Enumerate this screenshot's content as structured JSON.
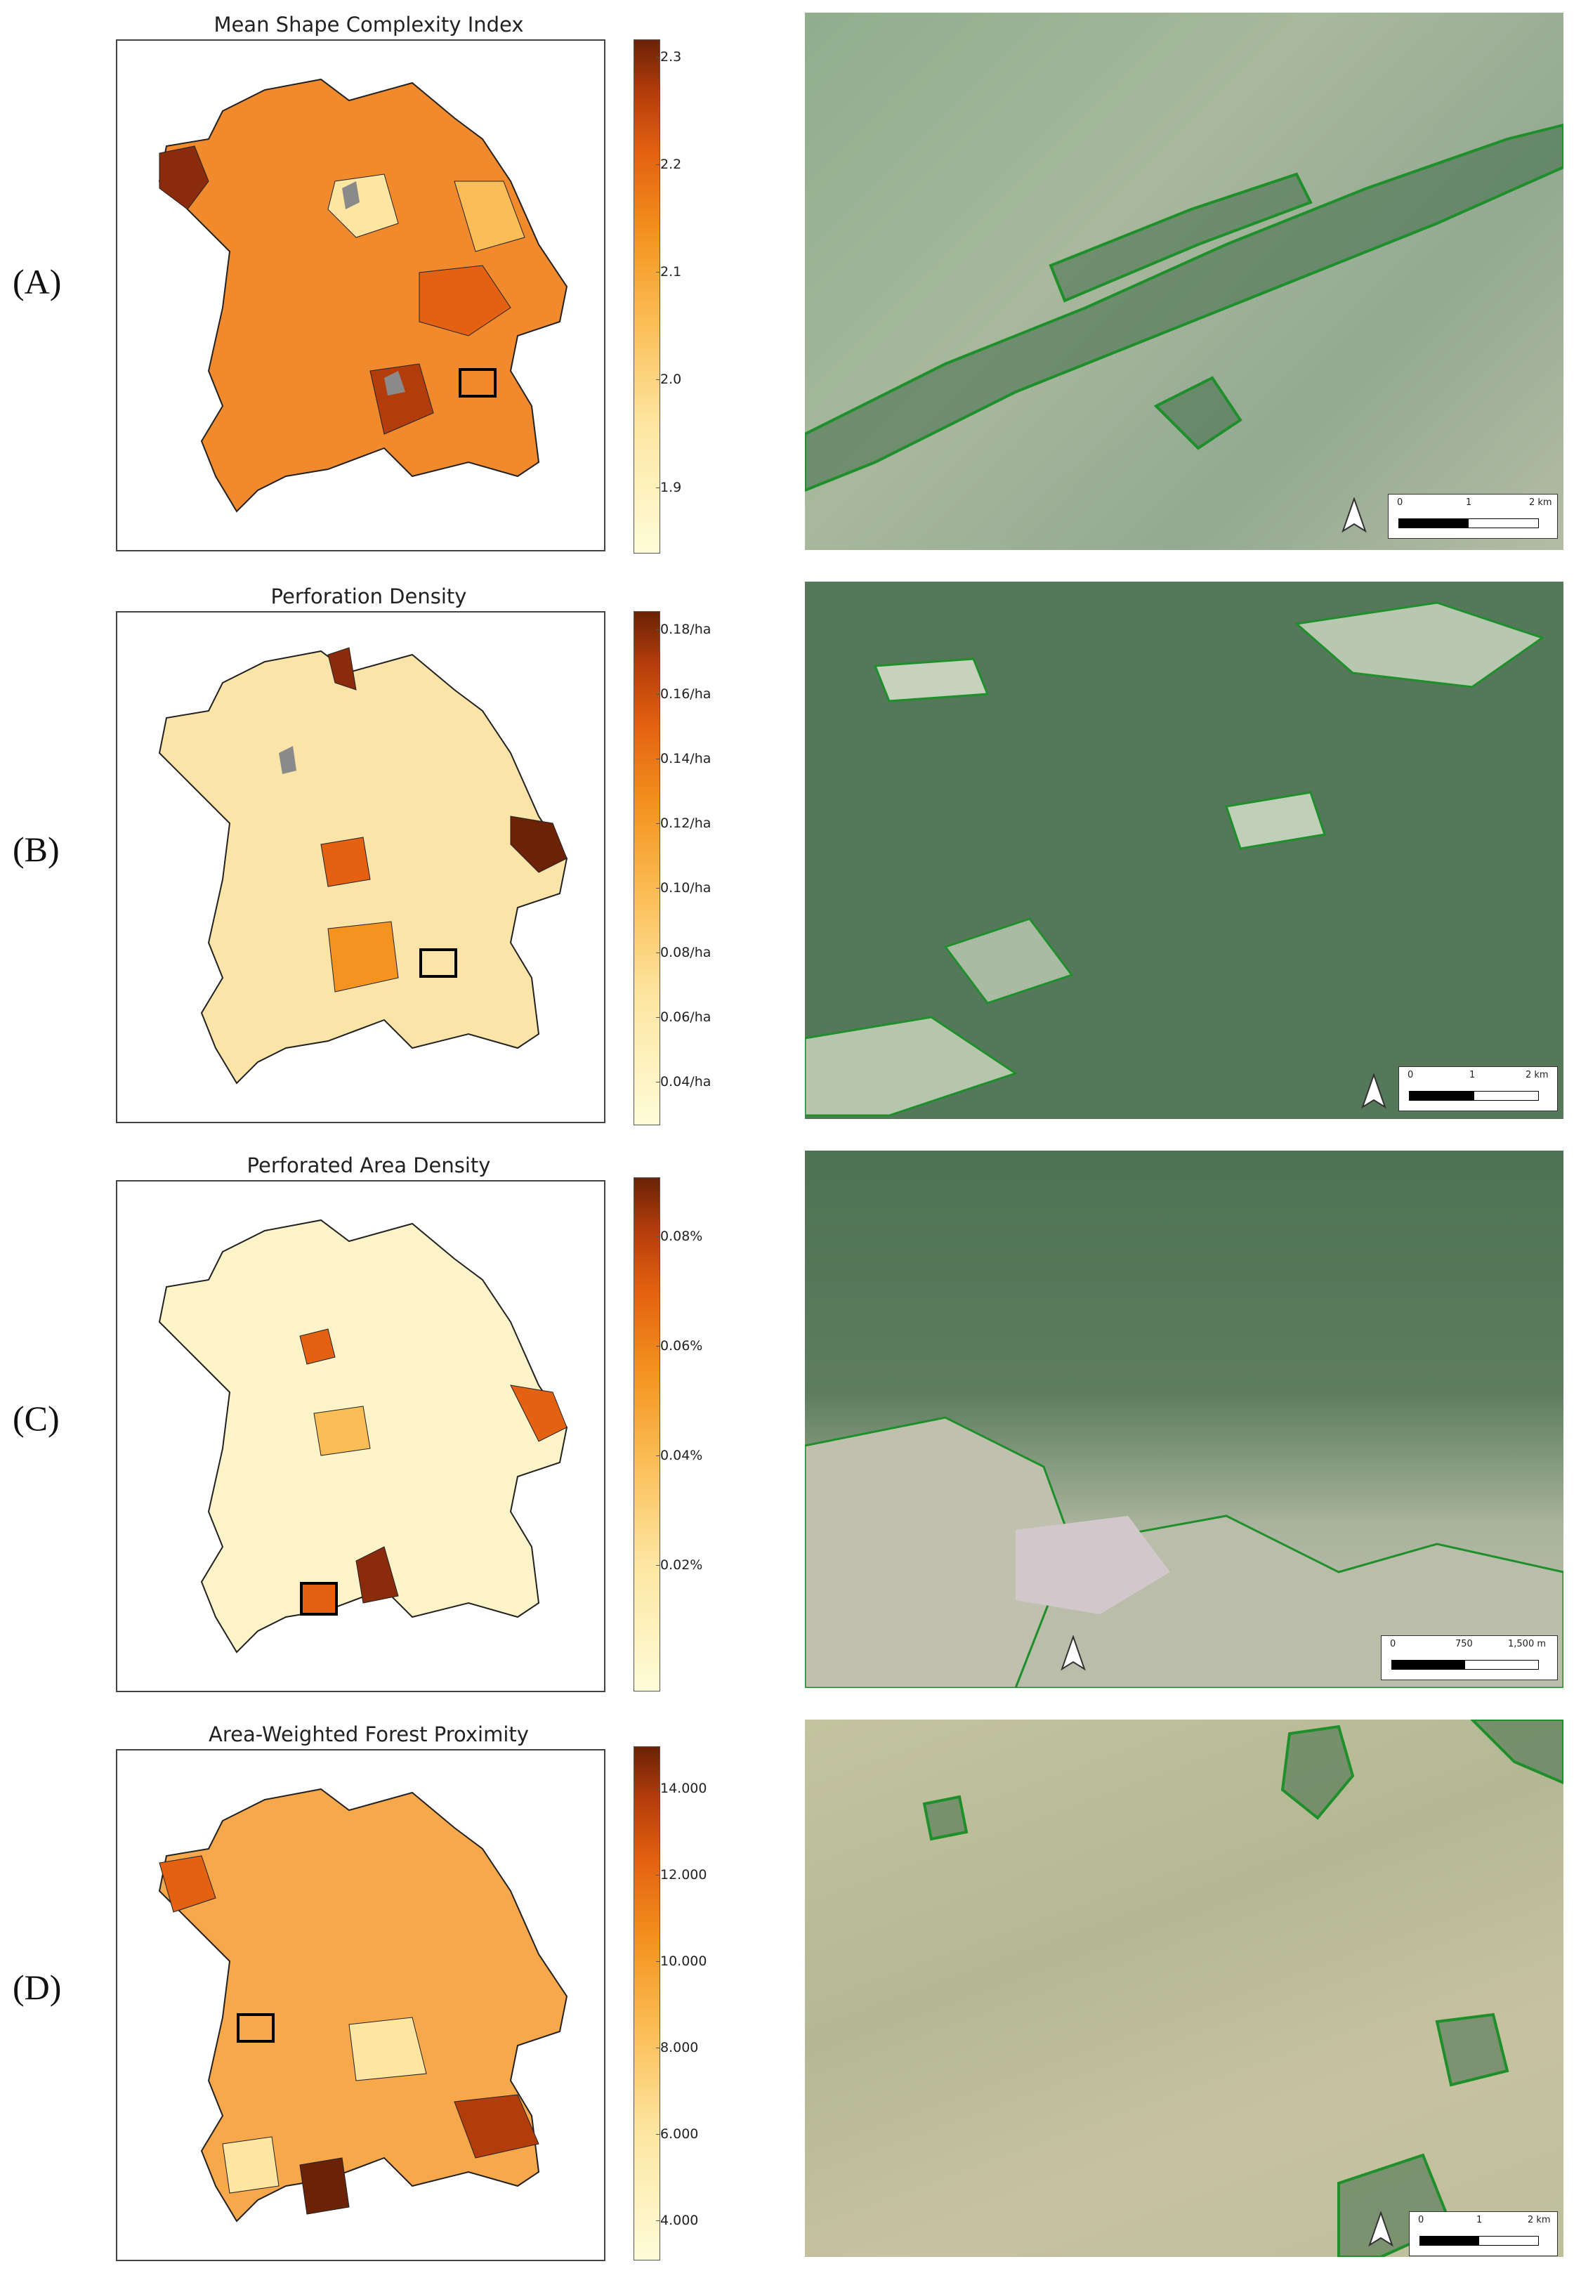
{
  "panels": [
    {
      "label": "(A)",
      "title": "Mean Shape Complexity Index",
      "colorbar_ticks": [
        "2.3",
        "2.2",
        "2.1",
        "2.0",
        "1.9"
      ],
      "scale": {
        "marks": [
          "0",
          "1",
          "2 km"
        ]
      },
      "palette": {
        "fill_main": "#f08a2c",
        "fill_alt": "#e8661c"
      }
    },
    {
      "label": "(B)",
      "title": "Perforation Density",
      "colorbar_ticks": [
        "0.18/ha",
        "0.16/ha",
        "0.14/ha",
        "0.12/ha",
        "0.10/ha",
        "0.08/ha",
        "0.06/ha",
        "0.04/ha"
      ],
      "scale": {
        "marks": [
          "0",
          "1",
          "2 km"
        ]
      },
      "palette": {
        "fill_main": "#fbe4a8",
        "fill_alt": "#f6c36b"
      }
    },
    {
      "label": "(C)",
      "title": "Perforated Area Density",
      "colorbar_ticks": [
        "0.08%",
        "0.06%",
        "0.04%",
        "0.02%"
      ],
      "scale": {
        "marks": [
          "0",
          "750",
          "1,500 m"
        ]
      },
      "palette": {
        "fill_main": "#fdf3c8",
        "fill_alt": "#f8d68e"
      }
    },
    {
      "label": "(D)",
      "title": "Area-Weighted Forest Proximity",
      "colorbar_ticks": [
        "14.000",
        "12.000",
        "10.000",
        "8.000",
        "6.000",
        "4.000"
      ],
      "scale": {
        "marks": [
          "0",
          "1",
          "2 km"
        ]
      },
      "palette": {
        "fill_main": "#f6a84a",
        "fill_alt": "#ea7a25"
      }
    }
  ],
  "colors": {
    "colormap": [
      "#fefcd8",
      "#fde6a1",
      "#fbbd55",
      "#f4931f",
      "#e36110",
      "#b33c0b",
      "#6b2207"
    ],
    "urban": "#8a8a8a",
    "forest_outline": "#1e8f2a",
    "forest_hatch": "#3f6b48"
  }
}
